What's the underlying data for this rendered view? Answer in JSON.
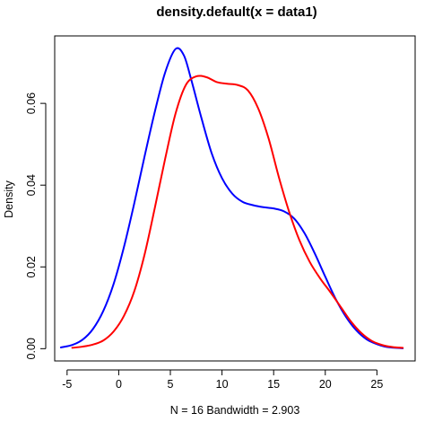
{
  "chart_data": {
    "type": "line",
    "title": "density.default(x = data1)",
    "xlabel": "N = 16   Bandwidth = 2.903",
    "ylabel": "Density",
    "xlim": [
      -6.2,
      28.7
    ],
    "ylim": [
      -0.003,
      0.0765
    ],
    "x_ticks": [
      -5,
      0,
      5,
      10,
      15,
      20,
      25
    ],
    "x_tick_labels": [
      "-5",
      "0",
      "5",
      "10",
      "15",
      "20",
      "25"
    ],
    "y_ticks": [
      0.0,
      0.02,
      0.04,
      0.06
    ],
    "y_tick_labels": [
      "0.00",
      "0.02",
      "0.04",
      "0.06"
    ],
    "grid": false,
    "series": [
      {
        "color": "#0000ff",
        "points": [
          [
            -5.6,
            0.0003
          ],
          [
            -4.5,
            0.0009
          ],
          [
            -3.5,
            0.0022
          ],
          [
            -2.5,
            0.0048
          ],
          [
            -1.5,
            0.0092
          ],
          [
            -0.5,
            0.0158
          ],
          [
            0.5,
            0.0248
          ],
          [
            1.5,
            0.0355
          ],
          [
            2.5,
            0.047
          ],
          [
            3.5,
            0.058
          ],
          [
            4.5,
            0.0676
          ],
          [
            5.5,
            0.0733
          ],
          [
            6.3,
            0.0718
          ],
          [
            7.0,
            0.066
          ],
          [
            8.0,
            0.0565
          ],
          [
            9.0,
            0.0478
          ],
          [
            10.0,
            0.0417
          ],
          [
            11.0,
            0.0379
          ],
          [
            12.0,
            0.0359
          ],
          [
            13.0,
            0.0351
          ],
          [
            14.0,
            0.0346
          ],
          [
            15.0,
            0.0343
          ],
          [
            16.0,
            0.0336
          ],
          [
            17.0,
            0.0318
          ],
          [
            18.0,
            0.0282
          ],
          [
            19.0,
            0.0232
          ],
          [
            20.0,
            0.0176
          ],
          [
            21.0,
            0.0122
          ],
          [
            22.0,
            0.0078
          ],
          [
            23.0,
            0.0045
          ],
          [
            24.0,
            0.0023
          ],
          [
            25.0,
            0.0011
          ],
          [
            26.0,
            0.0004
          ],
          [
            27.5,
            0.0001
          ]
        ]
      },
      {
        "color": "#ff0000",
        "points": [
          [
            -4.5,
            0.0002
          ],
          [
            -3.5,
            0.0005
          ],
          [
            -2.5,
            0.001
          ],
          [
            -1.5,
            0.002
          ],
          [
            -0.5,
            0.0042
          ],
          [
            0.5,
            0.008
          ],
          [
            1.5,
            0.014
          ],
          [
            2.5,
            0.023
          ],
          [
            3.5,
            0.0345
          ],
          [
            4.5,
            0.0465
          ],
          [
            5.5,
            0.0575
          ],
          [
            6.5,
            0.0645
          ],
          [
            7.5,
            0.0666
          ],
          [
            8.5,
            0.0664
          ],
          [
            9.5,
            0.0652
          ],
          [
            10.5,
            0.0648
          ],
          [
            11.5,
            0.0645
          ],
          [
            12.5,
            0.0632
          ],
          [
            13.5,
            0.0588
          ],
          [
            14.5,
            0.0515
          ],
          [
            15.5,
            0.042
          ],
          [
            16.5,
            0.0335
          ],
          [
            17.5,
            0.0265
          ],
          [
            18.5,
            0.0212
          ],
          [
            19.5,
            0.0172
          ],
          [
            20.5,
            0.0138
          ],
          [
            21.5,
            0.0102
          ],
          [
            22.5,
            0.0066
          ],
          [
            23.5,
            0.0038
          ],
          [
            24.5,
            0.0019
          ],
          [
            25.5,
            0.0009
          ],
          [
            26.5,
            0.0004
          ],
          [
            27.5,
            0.0002
          ]
        ]
      }
    ]
  }
}
